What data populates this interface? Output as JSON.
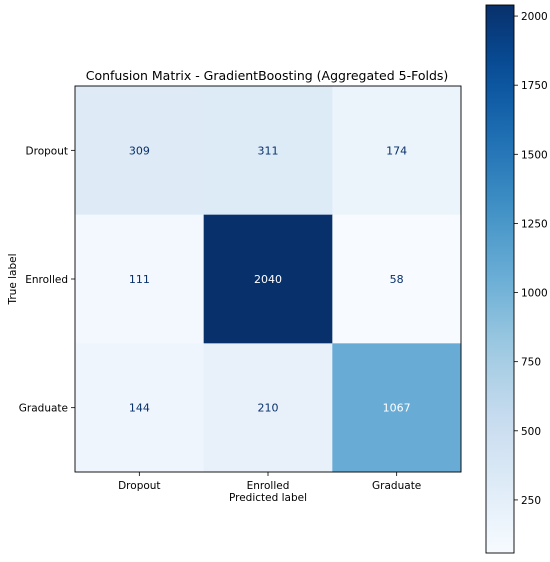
{
  "chart_data": {
    "type": "heatmap",
    "title": "Confusion Matrix - GradientBoosting (Aggregated 5-Folds)",
    "xlabel": "Predicted label",
    "ylabel": "True label",
    "x_categories": [
      "Dropout",
      "Enrolled",
      "Graduate"
    ],
    "y_categories": [
      "Dropout",
      "Enrolled",
      "Graduate"
    ],
    "values": [
      [
        309,
        311,
        174
      ],
      [
        111,
        2040,
        58
      ],
      [
        144,
        210,
        1067
      ]
    ],
    "colormap": "Blues",
    "color_range": [
      58,
      2040
    ],
    "colorbar_ticks": [
      250,
      500,
      750,
      1000,
      1250,
      1500,
      1750,
      2000
    ],
    "annotation_colors": {
      "on_light": "#08306b",
      "on_dark": "#ffffff"
    }
  }
}
